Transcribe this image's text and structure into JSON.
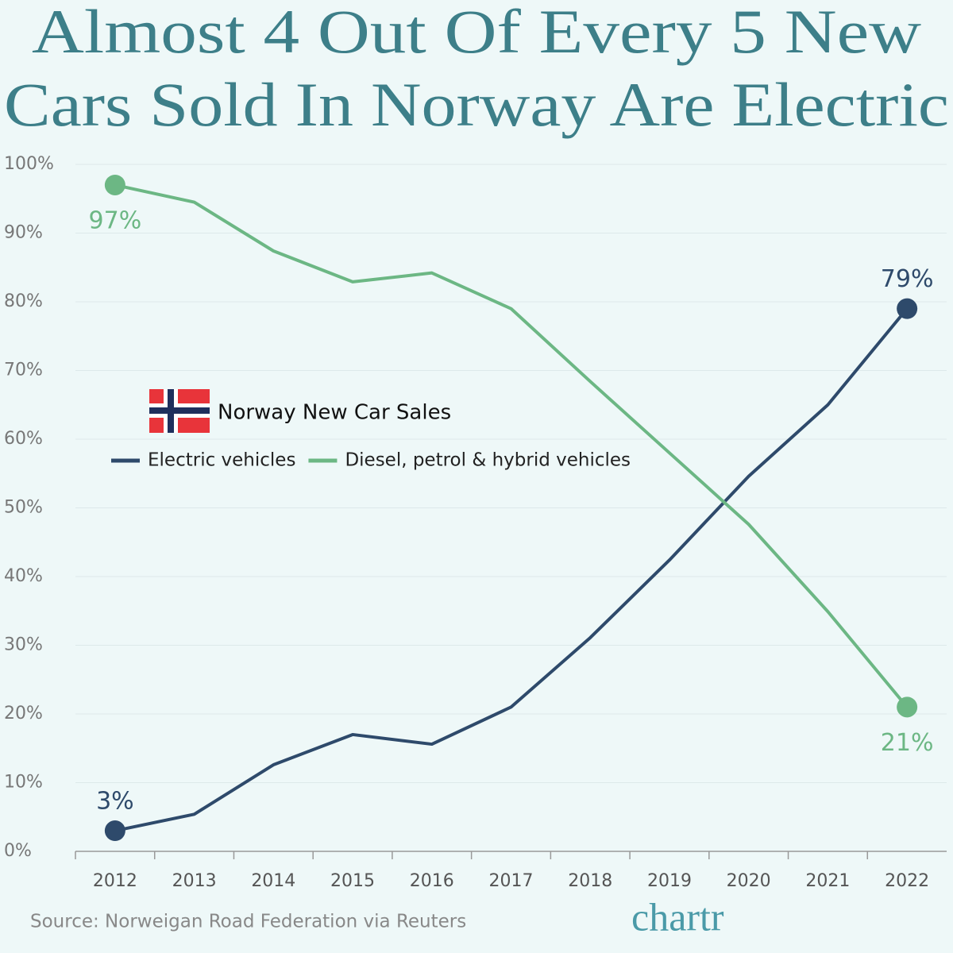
{
  "chart_data": {
    "type": "line",
    "title": [
      "Almost 4 Out Of Every 5 New",
      "Cars Sold In Norway Are Electric"
    ],
    "legend_title": "Norway New Car Sales",
    "categories": [
      "2012",
      "2013",
      "2014",
      "2015",
      "2016",
      "2017",
      "2018",
      "2019",
      "2020",
      "2021",
      "2022"
    ],
    "series": [
      {
        "name": "Electric vehicles",
        "color": "#2e4a6b",
        "values": [
          3,
          5.4,
          12.6,
          17.0,
          15.6,
          21.0,
          31.1,
          42.4,
          54.6,
          65.0,
          79
        ],
        "value_labels": [
          "3%",
          null,
          null,
          null,
          null,
          null,
          null,
          null,
          null,
          null,
          "79%"
        ]
      },
      {
        "name": "Diesel, petrol & hybrid vehicles",
        "color": "#6cb784",
        "values": [
          97,
          94.5,
          87.4,
          82.9,
          84.2,
          79.0,
          68.4,
          58.0,
          47.6,
          34.9,
          21
        ],
        "value_labels": [
          "97%",
          null,
          null,
          null,
          null,
          null,
          null,
          null,
          null,
          null,
          "21%"
        ]
      }
    ],
    "ylim": [
      0,
      100
    ],
    "yticks": [
      {
        "value": 0,
        "label": "0%"
      },
      {
        "value": 10,
        "label": "10%"
      },
      {
        "value": 20,
        "label": "20%"
      },
      {
        "value": 30,
        "label": "30%"
      },
      {
        "value": 40,
        "label": "40%"
      },
      {
        "value": 50,
        "label": "50%"
      },
      {
        "value": 60,
        "label": "60%"
      },
      {
        "value": 70,
        "label": "70%"
      },
      {
        "value": 80,
        "label": "80%"
      },
      {
        "value": 90,
        "label": "90%"
      },
      {
        "value": 100,
        "label": "100%"
      }
    ],
    "grid": true,
    "source": "Source: Norweigan Road Federation via Reuters",
    "logo": "chartr"
  }
}
